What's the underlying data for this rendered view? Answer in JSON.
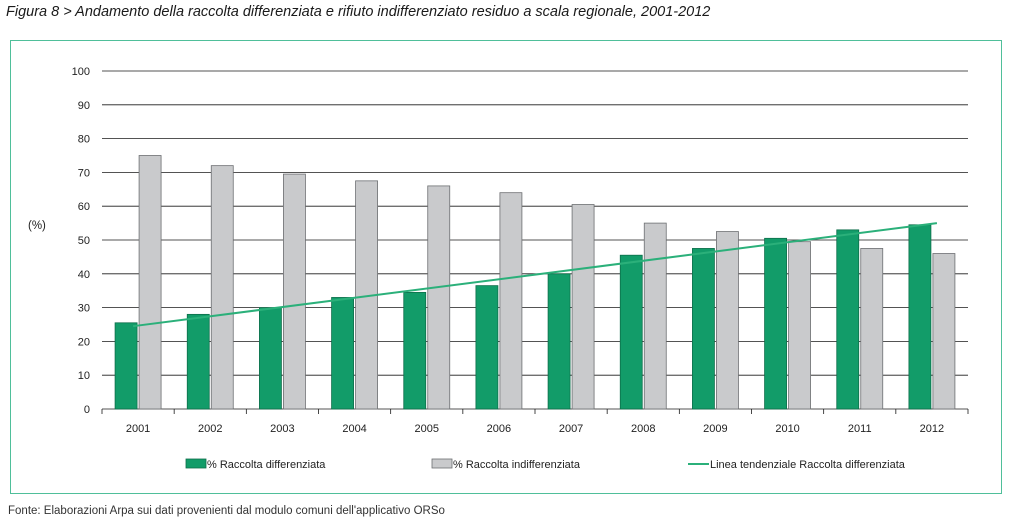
{
  "title": "Figura 8 > Andamento della raccolta differenziata e rifiuto indifferenziato residuo a scala regionale, 2001-2012",
  "source": "Fonte: Elaborazioni Arpa sui dati provenienti dal modulo comuni dell'applicativo ORSo",
  "colors": {
    "green": "#129c69",
    "grey": "#c9cacc",
    "trend": "#2bb07a",
    "frame": "#4fbf9a"
  },
  "chart_data": {
    "type": "bar",
    "ylabel": "(%)",
    "xlabel": "",
    "ylim": [
      0,
      100
    ],
    "yticks": [
      0,
      10,
      20,
      30,
      40,
      50,
      60,
      70,
      80,
      90,
      100
    ],
    "grid": true,
    "legend_position": "bottom",
    "categories": [
      "2001",
      "2002",
      "2003",
      "2004",
      "2005",
      "2006",
      "2007",
      "2008",
      "2009",
      "2010",
      "2011",
      "2012"
    ],
    "series": [
      {
        "name": "% Raccolta differenziata",
        "color": "#129c69",
        "values": [
          25.5,
          28,
          30,
          33,
          34.5,
          36.5,
          40,
          45.5,
          47.5,
          50.5,
          53,
          54.5
        ]
      },
      {
        "name": "% Raccolta indifferenziata",
        "color": "#c9cacc",
        "values": [
          75,
          72,
          69.5,
          67.5,
          66,
          64,
          60.5,
          55,
          52.5,
          49.5,
          47.5,
          46
        ]
      }
    ],
    "trendline": {
      "name": "Linea tendenziale Raccolta differenziata",
      "color": "#2bb07a",
      "start": 24.5,
      "end": 55
    }
  }
}
